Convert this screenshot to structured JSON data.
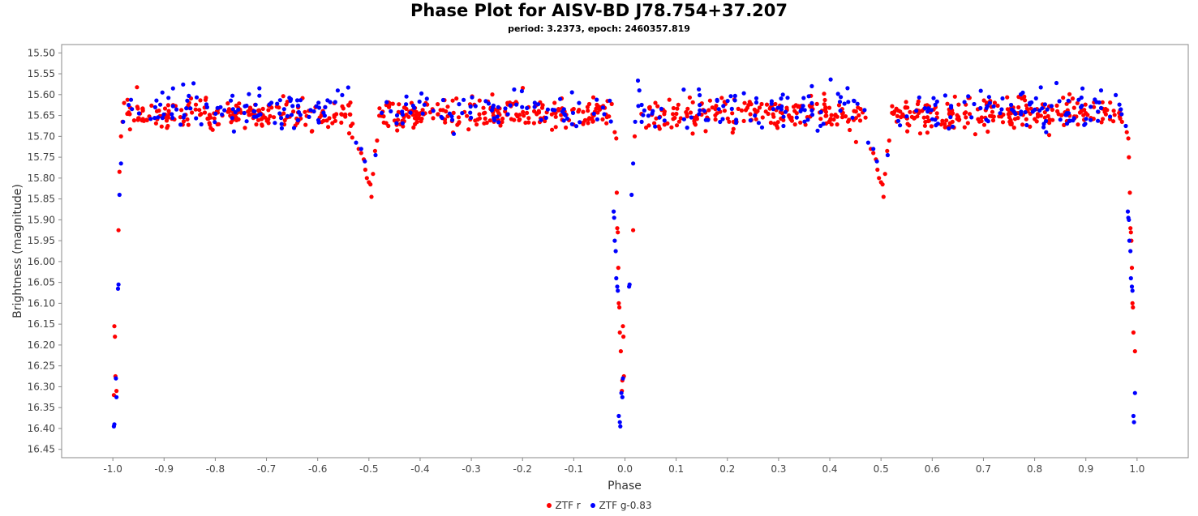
{
  "chart_data": {
    "type": "scatter",
    "title": "Phase Plot for AISV-BD J78.754+37.207",
    "subtitle": "period: 3.2373, epoch: 2460357.819",
    "xlabel": "Phase",
    "ylabel": "Brightness (magnitude)",
    "xlim": [
      -1.1,
      1.1
    ],
    "ylim": [
      16.47,
      15.48
    ],
    "y_inverted": true,
    "grid": false,
    "legend_position": "bottom",
    "x_ticks": [
      "-1.0",
      "-0.9",
      "-0.8",
      "-0.7",
      "-0.6",
      "-0.5",
      "-0.4",
      "-0.3",
      "-0.2",
      "-0.1",
      "0.0",
      "0.1",
      "0.2",
      "0.3",
      "0.4",
      "0.5",
      "0.6",
      "0.7",
      "0.8",
      "0.9",
      "1.0"
    ],
    "y_ticks": [
      "15.50",
      "15.55",
      "15.60",
      "15.65",
      "15.70",
      "15.75",
      "15.80",
      "15.85",
      "15.90",
      "15.95",
      "16.00",
      "16.05",
      "16.10",
      "16.15",
      "16.20",
      "16.25",
      "16.30",
      "16.35",
      "16.40",
      "16.45"
    ],
    "series": [
      {
        "name": "ZTF r",
        "color": "#ff0000",
        "points": [
          [
            -0.998,
            16.32
          ],
          [
            -0.997,
            16.155
          ],
          [
            -0.996,
            16.18
          ],
          [
            -0.995,
            16.275
          ],
          [
            -0.993,
            16.31
          ],
          [
            -0.989,
            15.925
          ],
          [
            -0.987,
            15.785
          ],
          [
            -0.984,
            15.7
          ],
          [
            -0.981,
            15.665
          ],
          [
            -0.978,
            15.62
          ],
          [
            -0.52,
            15.73
          ],
          [
            -0.515,
            15.74
          ],
          [
            -0.51,
            15.755
          ],
          [
            -0.507,
            15.78
          ],
          [
            -0.504,
            15.8
          ],
          [
            -0.5,
            15.81
          ],
          [
            -0.497,
            15.815
          ],
          [
            -0.495,
            15.845
          ],
          [
            -0.492,
            15.79
          ],
          [
            -0.488,
            15.735
          ],
          [
            -0.484,
            15.71
          ],
          [
            -0.02,
            15.69
          ],
          [
            -0.017,
            15.705
          ],
          [
            -0.016,
            15.835
          ],
          [
            -0.015,
            15.92
          ],
          [
            -0.014,
            15.93
          ],
          [
            -0.013,
            16.015
          ],
          [
            -0.012,
            16.1
          ],
          [
            -0.011,
            16.11
          ],
          [
            -0.01,
            16.17
          ],
          [
            -0.008,
            16.215
          ],
          [
            -0.006,
            16.31
          ],
          [
            -0.005,
            16.285
          ],
          [
            -0.004,
            16.155
          ],
          [
            -0.003,
            16.18
          ],
          [
            -0.002,
            16.275
          ],
          [
            0.016,
            15.925
          ],
          [
            0.019,
            15.7
          ],
          [
            0.48,
            15.73
          ],
          [
            0.485,
            15.74
          ],
          [
            0.49,
            15.755
          ],
          [
            0.493,
            15.78
          ],
          [
            0.496,
            15.8
          ],
          [
            0.5,
            15.81
          ],
          [
            0.503,
            15.815
          ],
          [
            0.505,
            15.845
          ],
          [
            0.508,
            15.79
          ],
          [
            0.512,
            15.735
          ],
          [
            0.516,
            15.71
          ],
          [
            0.98,
            15.69
          ],
          [
            0.983,
            15.705
          ],
          [
            0.984,
            15.75
          ],
          [
            0.986,
            15.835
          ],
          [
            0.987,
            15.92
          ],
          [
            0.988,
            15.93
          ],
          [
            0.989,
            15.95
          ],
          [
            0.99,
            16.015
          ],
          [
            0.991,
            16.1
          ],
          [
            0.992,
            16.11
          ],
          [
            0.993,
            16.17
          ],
          [
            0.996,
            16.215
          ]
        ],
        "baseline_points_per_unit": 460,
        "baseline_mean": 15.645,
        "baseline_spread": 0.018
      },
      {
        "name": "ZTF g-0.83",
        "color": "#0000ff",
        "points": [
          [
            -0.998,
            16.395
          ],
          [
            -0.997,
            16.39
          ],
          [
            -0.994,
            16.28
          ],
          [
            -0.993,
            16.325
          ],
          [
            -0.99,
            16.065
          ],
          [
            -0.989,
            16.055
          ],
          [
            -0.987,
            15.84
          ],
          [
            -0.984,
            15.765
          ],
          [
            -0.98,
            15.665
          ],
          [
            -0.525,
            15.715
          ],
          [
            -0.515,
            15.73
          ],
          [
            -0.508,
            15.76
          ],
          [
            -0.487,
            15.745
          ],
          [
            -0.022,
            15.88
          ],
          [
            -0.021,
            15.895
          ],
          [
            -0.02,
            15.95
          ],
          [
            -0.018,
            15.975
          ],
          [
            -0.017,
            16.04
          ],
          [
            -0.015,
            16.06
          ],
          [
            -0.014,
            16.07
          ],
          [
            -0.012,
            16.37
          ],
          [
            -0.01,
            16.385
          ],
          [
            -0.009,
            16.395
          ],
          [
            -0.007,
            16.315
          ],
          [
            -0.005,
            16.325
          ],
          [
            -0.004,
            16.28
          ],
          [
            0.008,
            16.06
          ],
          [
            0.009,
            16.055
          ],
          [
            0.013,
            15.84
          ],
          [
            0.016,
            15.765
          ],
          [
            0.02,
            15.665
          ],
          [
            0.475,
            15.715
          ],
          [
            0.485,
            15.73
          ],
          [
            0.492,
            15.76
          ],
          [
            0.513,
            15.745
          ],
          [
            0.978,
            15.675
          ],
          [
            0.982,
            15.88
          ],
          [
            0.983,
            15.895
          ],
          [
            0.984,
            15.9
          ],
          [
            0.985,
            15.95
          ],
          [
            0.987,
            15.975
          ],
          [
            0.988,
            16.04
          ],
          [
            0.99,
            16.06
          ],
          [
            0.991,
            16.07
          ],
          [
            0.993,
            16.37
          ],
          [
            0.994,
            16.385
          ],
          [
            0.996,
            16.315
          ]
        ],
        "baseline_points_per_unit": 200,
        "baseline_mean": 15.635,
        "baseline_spread": 0.025
      }
    ]
  }
}
